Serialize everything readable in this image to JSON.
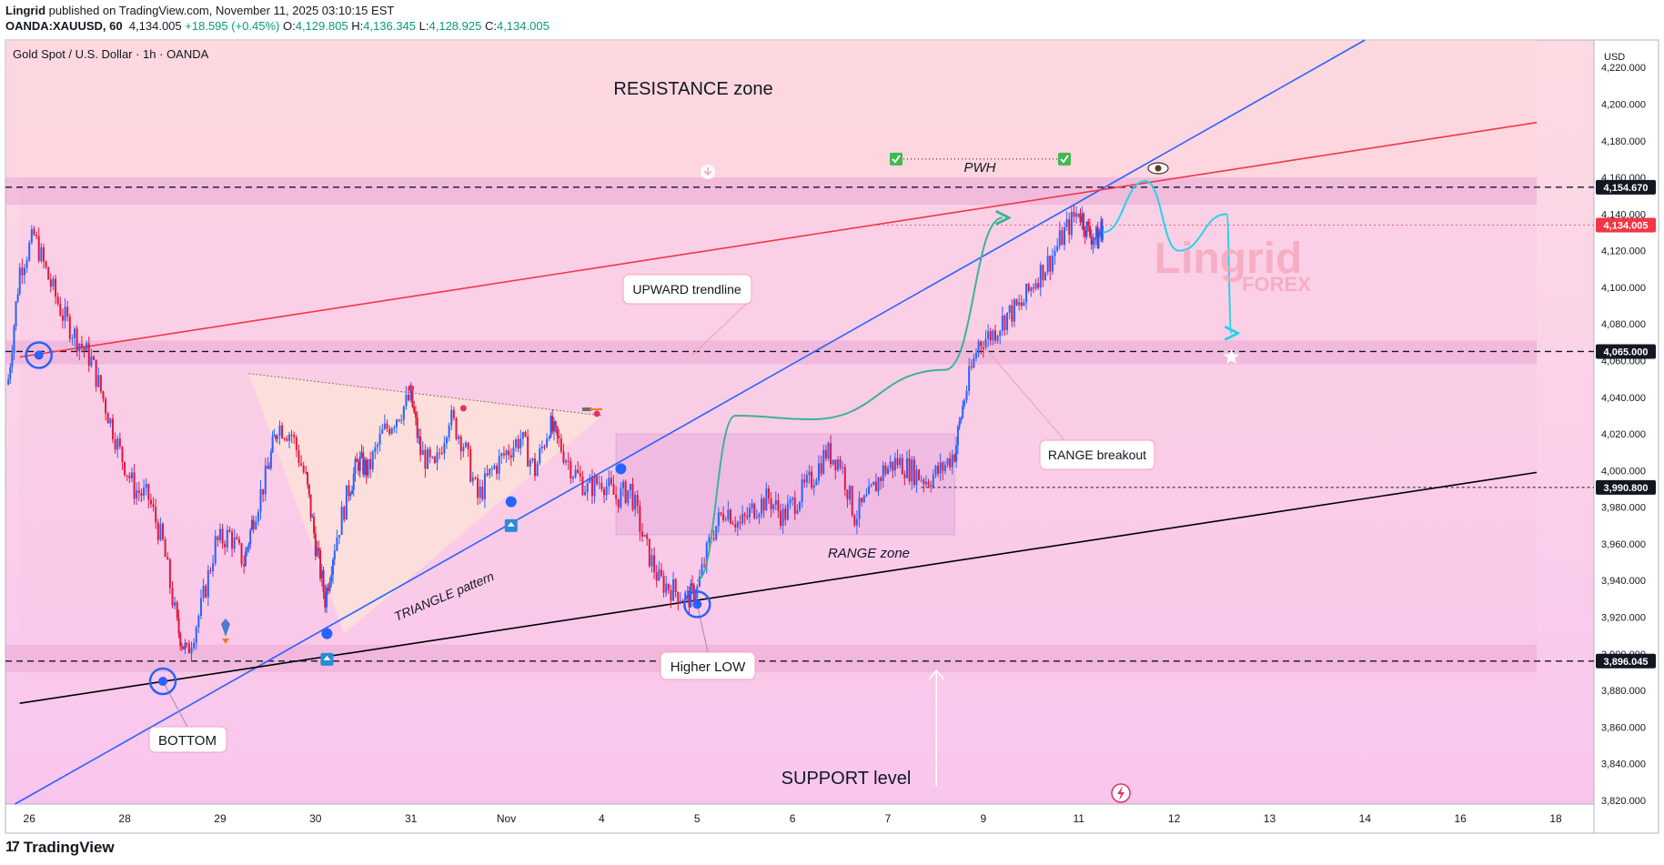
{
  "header": {
    "author": "Lingrid",
    "published_text": " published on TradingView.com, November 11, 2025 03:10:15 EST",
    "symbol": "OANDA:XAUUSD, 60",
    "last": "4,134.005",
    "change": "+18.595 (+0.45%)",
    "o_label": "O:",
    "o": "4,129.805",
    "h_label": "H:",
    "h": "4,136.345",
    "l_label": "L:",
    "l": "4,128.925",
    "c_label": "C:",
    "c": "4,134.005"
  },
  "chart_title": "Gold Spot / U.S. Dollar · 1h · OANDA",
  "currency": "USD",
  "watermark": {
    "main": "Lingrid",
    "sub": "FOREX"
  },
  "footer": {
    "brand": "TradingView",
    "logo": "17"
  },
  "colors": {
    "bull": "#2962ff",
    "bear": "#e0173f",
    "resistance_line": "#f23645",
    "support_line": "#000000",
    "upward_line": "#2962ff",
    "arrow_green": "#3bb39a",
    "arrow_cyan": "#22d3ee",
    "zone": "#e9a9d4"
  },
  "chart_data": {
    "type": "candlestick",
    "title": "Gold Spot / U.S. Dollar · 1h · OANDA",
    "ylim": [
      3818,
      4235
    ],
    "y_ticks": [
      3820,
      3840,
      3860,
      3880,
      3900,
      3920,
      3940,
      3960,
      3980,
      4000,
      4020,
      4040,
      4060,
      4080,
      4100,
      4120,
      4140,
      4160,
      4180,
      4200,
      4220
    ],
    "y_tick_labels": [
      "3,820.000",
      "3,840.000",
      "3,860.000",
      "3,880.000",
      "3,900.000",
      "3,920.000",
      "3,940.000",
      "3,960.000",
      "3,980.000",
      "4,000.000",
      "4,020.000",
      "4,040.000",
      "4,060.000",
      "4,080.000",
      "4,100.000",
      "4,120.000",
      "4,140.000",
      "4,160.000",
      "4,180.000",
      "4,200.000",
      "4,220.000"
    ],
    "x_labels": [
      {
        "label": "26",
        "x": 0
      },
      {
        "label": "28",
        "x": 1
      },
      {
        "label": "29",
        "x": 2
      },
      {
        "label": "30",
        "x": 3
      },
      {
        "label": "31",
        "x": 4
      },
      {
        "label": "Nov",
        "x": 5
      },
      {
        "label": "4",
        "x": 6
      },
      {
        "label": "5",
        "x": 7
      },
      {
        "label": "6",
        "x": 8
      },
      {
        "label": "7",
        "x": 9
      },
      {
        "label": "9",
        "x": 10
      },
      {
        "label": "11",
        "x": 11
      },
      {
        "label": "12",
        "x": 12
      },
      {
        "label": "13",
        "x": 13
      },
      {
        "label": "14",
        "x": 14
      },
      {
        "label": "16",
        "x": 15
      },
      {
        "label": "18",
        "x": 16
      }
    ],
    "x_range": [
      -0.25,
      16.4
    ],
    "price_tags": [
      {
        "label": "4,154.670",
        "value": 4154.67,
        "style": "dark"
      },
      {
        "label": "4,134.005",
        "value": 4134.005,
        "style": "red"
      },
      {
        "label": "4,065.000",
        "value": 4065.0,
        "style": "dark"
      },
      {
        "label": "3,990.800",
        "value": 3990.8,
        "style": "dark"
      },
      {
        "label": "3,896.045",
        "value": 3896.045,
        "style": "dark"
      }
    ],
    "zones": [
      {
        "name": "resistance-zone",
        "y1": 4145,
        "y2": 4160
      },
      {
        "name": "mid-zone",
        "y1": 4058,
        "y2": 4071
      },
      {
        "name": "support-zone",
        "y1": 3890,
        "y2": 3905
      }
    ],
    "trendlines": [
      {
        "name": "upward-trendline",
        "x1": -0.15,
        "y1": 3818,
        "x2": 14.0,
        "y2": 4235
      },
      {
        "name": "resistance-line",
        "x1": -0.1,
        "y1": 4062,
        "x2": 15.8,
        "y2": 4190
      },
      {
        "name": "support-trendline",
        "x1": -0.1,
        "y1": 3873,
        "x2": 15.8,
        "y2": 3999
      }
    ],
    "range_box": {
      "x1": 6.15,
      "x2": 9.7,
      "y1": 3965,
      "y2": 4020
    },
    "key_points": [
      {
        "name": "bottom",
        "x": 1.4,
        "y": 3885
      },
      {
        "name": "left-top",
        "x": 0.1,
        "y": 4063
      },
      {
        "name": "higher-low",
        "x": 7.0,
        "y": 3927
      },
      {
        "name": "tl-touch-1",
        "x": 3.12,
        "y": 3911
      },
      {
        "name": "tl-touch-2",
        "x": 5.05,
        "y": 3983
      },
      {
        "name": "tl-touch-3",
        "x": 6.2,
        "y": 4001
      }
    ],
    "close_path": [
      [
        -0.22,
        4050
      ],
      [
        -0.1,
        4110
      ],
      [
        0.05,
        4128
      ],
      [
        0.2,
        4105
      ],
      [
        0.35,
        4085
      ],
      [
        0.5,
        4072
      ],
      [
        0.65,
        4060
      ],
      [
        0.8,
        4035
      ],
      [
        0.95,
        4010
      ],
      [
        1.1,
        3990
      ],
      [
        1.25,
        3985
      ],
      [
        1.4,
        3960
      ],
      [
        1.55,
        3915
      ],
      [
        1.65,
        3900
      ],
      [
        1.8,
        3925
      ],
      [
        1.95,
        3960
      ],
      [
        2.1,
        3965
      ],
      [
        2.25,
        3950
      ],
      [
        2.35,
        3975
      ],
      [
        2.5,
        4000
      ],
      [
        2.6,
        4025
      ],
      [
        2.75,
        4020
      ],
      [
        2.9,
        3995
      ],
      [
        3.0,
        3960
      ],
      [
        3.1,
        3930
      ],
      [
        3.2,
        3960
      ],
      [
        3.35,
        3990
      ],
      [
        3.45,
        4005
      ],
      [
        3.55,
        4000
      ],
      [
        3.7,
        4020
      ],
      [
        3.85,
        4030
      ],
      [
        4.0,
        4040
      ],
      [
        4.1,
        4010
      ],
      [
        4.25,
        4000
      ],
      [
        4.4,
        4030
      ],
      [
        4.55,
        4015
      ],
      [
        4.7,
        3985
      ],
      [
        4.85,
        4000
      ],
      [
        5.0,
        4010
      ],
      [
        5.15,
        4018
      ],
      [
        5.3,
        4000
      ],
      [
        5.45,
        4025
      ],
      [
        5.55,
        4015
      ],
      [
        5.7,
        4000
      ],
      [
        5.85,
        3990
      ],
      [
        6.0,
        3995
      ],
      [
        6.15,
        3985
      ],
      [
        6.3,
        3990
      ],
      [
        6.45,
        3960
      ],
      [
        6.6,
        3940
      ],
      [
        6.75,
        3935
      ],
      [
        6.9,
        3930
      ],
      [
        7.0,
        3935
      ],
      [
        7.15,
        3965
      ],
      [
        7.3,
        3980
      ],
      [
        7.45,
        3970
      ],
      [
        7.6,
        3980
      ],
      [
        7.75,
        3985
      ],
      [
        7.9,
        3975
      ],
      [
        8.05,
        3985
      ],
      [
        8.2,
        3995
      ],
      [
        8.35,
        4010
      ],
      [
        8.5,
        4005
      ],
      [
        8.65,
        3975
      ],
      [
        8.8,
        3985
      ],
      [
        8.95,
        4000
      ],
      [
        9.1,
        4005
      ],
      [
        9.25,
        4000
      ],
      [
        9.4,
        3995
      ],
      [
        9.55,
        4000
      ],
      [
        9.7,
        4010
      ],
      [
        9.8,
        4040
      ],
      [
        9.95,
        4070
      ],
      [
        10.1,
        4075
      ],
      [
        10.25,
        4085
      ],
      [
        10.4,
        4090
      ],
      [
        10.55,
        4105
      ],
      [
        10.7,
        4115
      ],
      [
        10.85,
        4130
      ],
      [
        11.0,
        4142
      ],
      [
        11.1,
        4130
      ],
      [
        11.2,
        4126
      ],
      [
        11.25,
        4134
      ]
    ],
    "projection_green": [
      [
        7.0,
        3940
      ],
      [
        7.4,
        4030
      ],
      [
        8.2,
        4028
      ],
      [
        9.6,
        4055
      ],
      [
        10.2,
        4138
      ]
    ],
    "projection_cyan": [
      [
        11.25,
        4130
      ],
      [
        11.7,
        4158
      ],
      [
        12.05,
        4120
      ],
      [
        12.55,
        4140
      ],
      [
        12.6,
        4075
      ]
    ],
    "annotations": {
      "resistance": "RESISTANCE zone",
      "support": "SUPPORT level",
      "pwh": "PWH",
      "upward_trendline": "UPWARD trendline",
      "range_breakout": "RANGE breakout",
      "range_zone": "RANGE zone",
      "triangle": "TRIANGLE pattern",
      "higher_low": "Higher LOW",
      "bottom": "BOTTOM"
    }
  }
}
